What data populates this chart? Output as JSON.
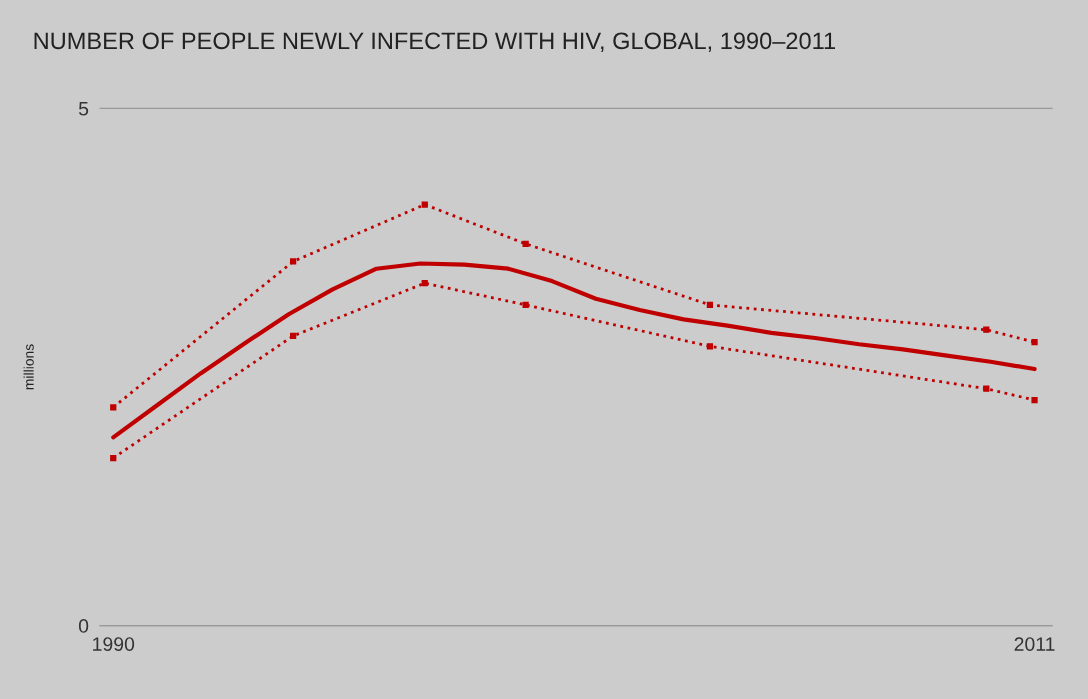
{
  "chart_data": {
    "type": "line",
    "title": "NUMBER OF PEOPLE NEWLY INFECTED WITH HIV, GLOBAL, 1990–2011",
    "ylabel": "millions",
    "xlim": [
      1989.7,
      2011.4
    ],
    "xticks": [
      1990,
      2011
    ],
    "ylim": [
      0,
      5
    ],
    "yticks": [
      0,
      5
    ],
    "grid": "y",
    "series": [
      {
        "color": "#c00000",
        "line_style": "dotted",
        "marker": "square",
        "x": [
          1990,
          1994.1,
          1997.1,
          1999.4,
          2003.6,
          2009.9,
          2011
        ],
        "values": [
          2.11,
          3.52,
          4.07,
          3.69,
          3.1,
          2.86,
          2.74
        ]
      },
      {
        "color": "#c00000",
        "line_style": "dotted",
        "marker": "square",
        "x": [
          1990,
          1994.1,
          1997.1,
          1999.4,
          2003.6,
          2009.9,
          2011
        ],
        "values": [
          1.62,
          2.8,
          3.31,
          3.1,
          2.7,
          2.29,
          2.18
        ]
      },
      {
        "color": "#c00000",
        "line_style": "solid",
        "marker": "none",
        "x": [
          1990,
          1991,
          1992,
          1993,
          1994,
          1995,
          1996,
          1997,
          1998,
          1999,
          2000,
          2001,
          2002,
          2003,
          2004,
          2005,
          2006,
          2007,
          2008,
          2009,
          2010,
          2011
        ],
        "values": [
          1.82,
          2.13,
          2.44,
          2.73,
          3.01,
          3.25,
          3.45,
          3.5,
          3.49,
          3.45,
          3.33,
          3.16,
          3.05,
          2.96,
          2.9,
          2.83,
          2.78,
          2.72,
          2.67,
          2.61,
          2.55,
          2.48
        ]
      }
    ]
  }
}
